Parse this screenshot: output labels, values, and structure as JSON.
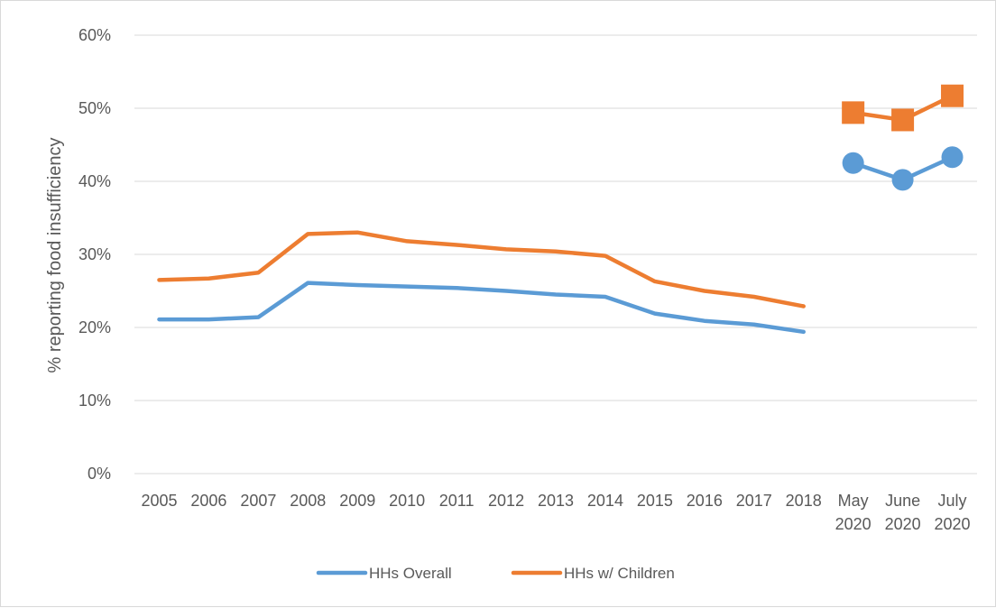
{
  "chart_data": {
    "type": "line",
    "title": "",
    "xlabel": "",
    "ylabel": "% reporting food insufficiency",
    "ylim": [
      0,
      0.6
    ],
    "yticks": [
      "0%",
      "10%",
      "20%",
      "30%",
      "40%",
      "50%",
      "60%"
    ],
    "categories": [
      "2005",
      "2006",
      "2007",
      "2008",
      "2009",
      "2010",
      "2011",
      "2012",
      "2013",
      "2014",
      "2015",
      "2016",
      "2017",
      "2018",
      "May 2020",
      "June 2020",
      "July 2020"
    ],
    "grid": true,
    "legend_position": "bottom",
    "series": [
      {
        "name": "HHs Overall",
        "color": "#5b9bd5",
        "marker": "circle",
        "annual_values": [
          0.211,
          0.211,
          0.214,
          0.261,
          0.258,
          0.256,
          0.254,
          0.25,
          0.245,
          0.242,
          0.219,
          0.209,
          0.204,
          0.194
        ],
        "monthly_values": [
          0.425,
          0.402,
          0.433
        ]
      },
      {
        "name": "HHs w/ Children",
        "color": "#ed7d31",
        "marker": "square",
        "annual_values": [
          0.265,
          0.267,
          0.275,
          0.328,
          0.33,
          0.318,
          0.313,
          0.307,
          0.304,
          0.298,
          0.263,
          0.25,
          0.242,
          0.229
        ],
        "monthly_values": [
          0.494,
          0.484,
          0.517
        ]
      }
    ]
  }
}
